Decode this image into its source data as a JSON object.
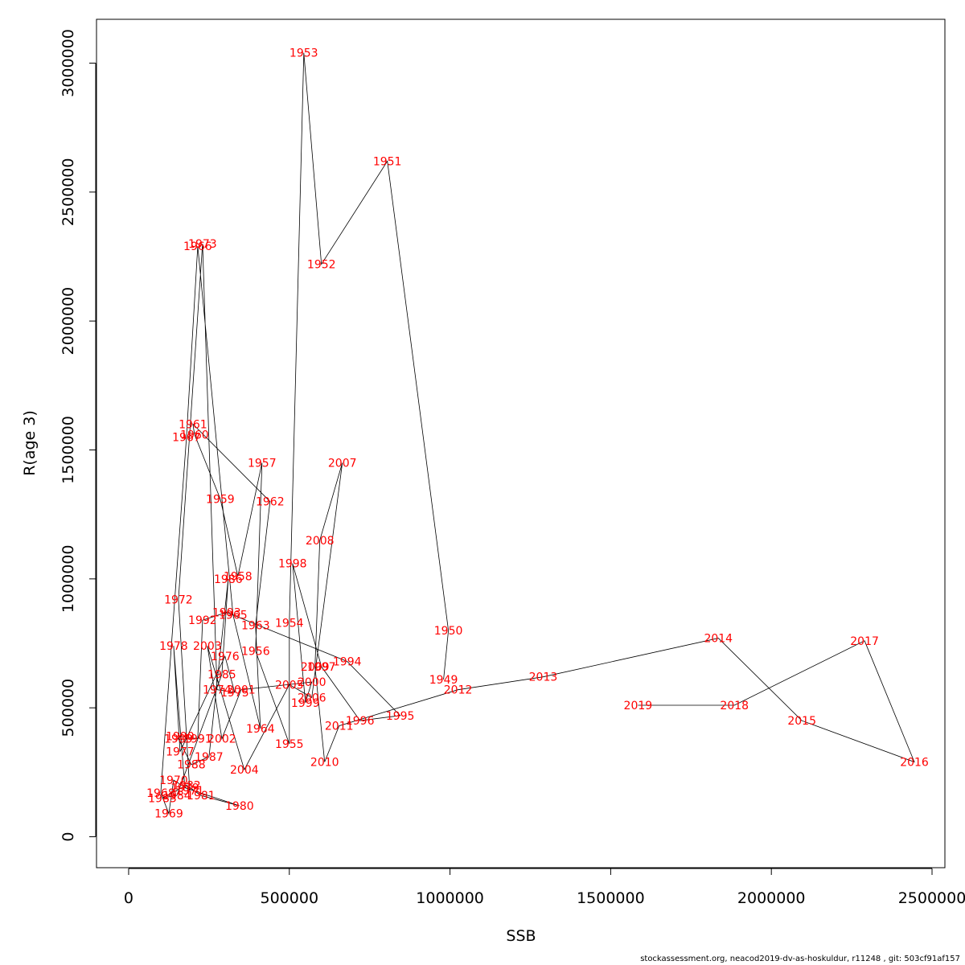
{
  "chart_data": {
    "type": "scatter",
    "xlabel": "SSB",
    "ylabel": "R(age 3)",
    "xlim": [
      -100000,
      2540000
    ],
    "ylim": [
      -120000,
      3170000
    ],
    "x_ticks": [
      0,
      500000,
      1000000,
      1500000,
      2000000,
      2500000
    ],
    "x_tick_labels": [
      "0",
      "500000",
      "1000000",
      "1500000",
      "2000000",
      "2500000"
    ],
    "y_ticks": [
      0,
      500000,
      1000000,
      1500000,
      2000000,
      2500000,
      3000000
    ],
    "y_tick_labels": [
      "0",
      "500000",
      "1000000",
      "1500000",
      "2000000",
      "2500000",
      "3000000"
    ],
    "grid": false,
    "point_label_color": "#ff0000",
    "line_color": "#000000",
    "points": [
      {
        "year": "1949",
        "x": 980000,
        "y": 610000
      },
      {
        "year": "1950",
        "x": 995000,
        "y": 800000
      },
      {
        "year": "1951",
        "x": 805000,
        "y": 2620000
      },
      {
        "year": "1952",
        "x": 600000,
        "y": 2220000
      },
      {
        "year": "1953",
        "x": 545000,
        "y": 3040000
      },
      {
        "year": "1954",
        "x": 500000,
        "y": 830000
      },
      {
        "year": "1955",
        "x": 500000,
        "y": 360000
      },
      {
        "year": "1956",
        "x": 395000,
        "y": 720000
      },
      {
        "year": "1957",
        "x": 415000,
        "y": 1450000
      },
      {
        "year": "1958",
        "x": 340000,
        "y": 1010000
      },
      {
        "year": "1959",
        "x": 285000,
        "y": 1310000
      },
      {
        "year": "1960",
        "x": 205000,
        "y": 1560000
      },
      {
        "year": "1961",
        "x": 200000,
        "y": 1600000
      },
      {
        "year": "1962",
        "x": 440000,
        "y": 1300000
      },
      {
        "year": "1963",
        "x": 395000,
        "y": 820000
      },
      {
        "year": "1964",
        "x": 410000,
        "y": 420000
      },
      {
        "year": "1965",
        "x": 325000,
        "y": 860000
      },
      {
        "year": "1966",
        "x": 215000,
        "y": 2290000
      },
      {
        "year": "1967",
        "x": 180000,
        "y": 1550000
      },
      {
        "year": "1968",
        "x": 100000,
        "y": 170000
      },
      {
        "year": "1969",
        "x": 125000,
        "y": 90000
      },
      {
        "year": "1970",
        "x": 140000,
        "y": 220000
      },
      {
        "year": "1971",
        "x": 190000,
        "y": 180000
      },
      {
        "year": "1972",
        "x": 155000,
        "y": 920000
      },
      {
        "year": "1973",
        "x": 230000,
        "y": 2300000
      },
      {
        "year": "1974",
        "x": 275000,
        "y": 570000
      },
      {
        "year": "1975",
        "x": 330000,
        "y": 560000
      },
      {
        "year": "1976",
        "x": 300000,
        "y": 700000
      },
      {
        "year": "1977",
        "x": 160000,
        "y": 330000
      },
      {
        "year": "1978",
        "x": 140000,
        "y": 740000
      },
      {
        "year": "1979",
        "x": 175000,
        "y": 190000
      },
      {
        "year": "1980",
        "x": 345000,
        "y": 120000
      },
      {
        "year": "1981",
        "x": 225000,
        "y": 160000
      },
      {
        "year": "1982",
        "x": 180000,
        "y": 200000
      },
      {
        "year": "1983",
        "x": 105000,
        "y": 150000
      },
      {
        "year": "1984",
        "x": 150000,
        "y": 160000
      },
      {
        "year": "1985",
        "x": 290000,
        "y": 630000
      },
      {
        "year": "1986",
        "x": 310000,
        "y": 1000000
      },
      {
        "year": "1987",
        "x": 250000,
        "y": 310000
      },
      {
        "year": "1988",
        "x": 195000,
        "y": 280000
      },
      {
        "year": "1989",
        "x": 155000,
        "y": 380000
      },
      {
        "year": "1990",
        "x": 160000,
        "y": 390000
      },
      {
        "year": "1991",
        "x": 215000,
        "y": 380000
      },
      {
        "year": "1992",
        "x": 230000,
        "y": 840000
      },
      {
        "year": "1993",
        "x": 305000,
        "y": 870000
      },
      {
        "year": "1994",
        "x": 680000,
        "y": 680000
      },
      {
        "year": "1995",
        "x": 845000,
        "y": 470000
      },
      {
        "year": "1996",
        "x": 720000,
        "y": 450000
      },
      {
        "year": "1997",
        "x": 600000,
        "y": 660000
      },
      {
        "year": "1998",
        "x": 510000,
        "y": 1060000
      },
      {
        "year": "1999",
        "x": 550000,
        "y": 520000
      },
      {
        "year": "2000",
        "x": 570000,
        "y": 600000
      },
      {
        "year": "2001",
        "x": 350000,
        "y": 570000
      },
      {
        "year": "2002",
        "x": 290000,
        "y": 380000
      },
      {
        "year": "2003",
        "x": 245000,
        "y": 740000
      },
      {
        "year": "2004",
        "x": 360000,
        "y": 260000
      },
      {
        "year": "2005",
        "x": 500000,
        "y": 590000
      },
      {
        "year": "2006",
        "x": 570000,
        "y": 540000
      },
      {
        "year": "2007",
        "x": 665000,
        "y": 1450000
      },
      {
        "year": "2008",
        "x": 595000,
        "y": 1150000
      },
      {
        "year": "2009",
        "x": 580000,
        "y": 660000
      },
      {
        "year": "2010",
        "x": 610000,
        "y": 290000
      },
      {
        "year": "2011",
        "x": 655000,
        "y": 430000
      },
      {
        "year": "2012",
        "x": 1025000,
        "y": 570000
      },
      {
        "year": "2013",
        "x": 1290000,
        "y": 620000
      },
      {
        "year": "2014",
        "x": 1835000,
        "y": 770000
      },
      {
        "year": "2015",
        "x": 2095000,
        "y": 450000
      },
      {
        "year": "2016",
        "x": 2445000,
        "y": 290000
      },
      {
        "year": "2017",
        "x": 2290000,
        "y": 760000
      },
      {
        "year": "2018",
        "x": 1885000,
        "y": 510000
      },
      {
        "year": "2019",
        "x": 1585000,
        "y": 510000
      }
    ]
  },
  "footer": {
    "text": "stockassessment.org, neacod2019-dv-as-hoskuldur, r11248 , git: 503cf91af157"
  }
}
